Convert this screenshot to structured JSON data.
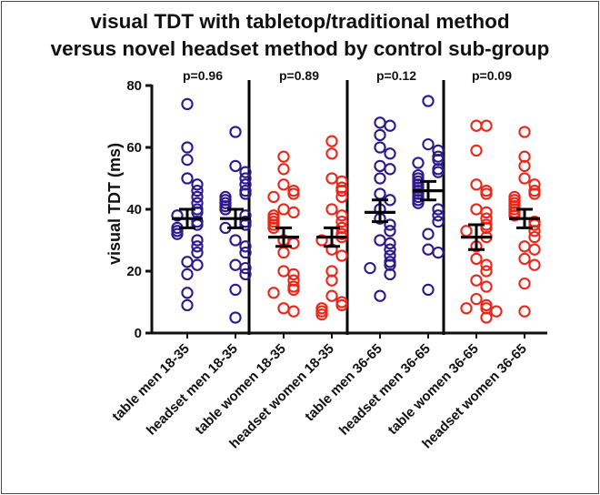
{
  "chart_data": {
    "type": "scatter",
    "title_lines": [
      "visual TDT with tabletop/traditional method",
      "versus novel headset method by control sub-group"
    ],
    "xlabel": "",
    "ylabel": "visual TDT (ms)",
    "ylim": [
      0,
      80
    ],
    "yticks": [
      "0",
      "20",
      "40",
      "60",
      "80"
    ],
    "grid": false,
    "categories": [
      "table men 18-35",
      "headset men 18-35",
      "table women 18-35",
      "headset women 18-35",
      "table men 36-65",
      "headset men 36-65",
      "table women 36-65",
      "headset women 36-65"
    ],
    "colors": [
      "#2e1a8c",
      "#2e1a8c",
      "#e8281a",
      "#e8281a",
      "#2e1a8c",
      "#2e1a8c",
      "#e8281a",
      "#e8281a"
    ],
    "mean_color": "#000000",
    "p_values": [
      "p=0.96",
      "p=0.89",
      "p=0.12",
      "p=0.09"
    ],
    "series": [
      {
        "values": [
          74,
          60,
          56,
          50,
          48,
          46,
          44,
          42,
          40,
          39,
          38,
          36,
          35,
          34,
          33,
          32,
          30,
          28,
          26,
          23,
          22,
          19,
          13,
          9
        ],
        "mean": 37,
        "sem": [
          34,
          40
        ]
      },
      {
        "values": [
          65,
          54,
          52,
          50,
          48,
          46,
          45,
          44,
          43,
          42,
          41,
          40,
          38,
          36,
          35,
          34,
          30,
          28,
          26,
          22,
          21,
          19,
          14,
          5
        ],
        "mean": 37,
        "sem": [
          34,
          40
        ]
      },
      {
        "values": [
          57,
          53,
          48,
          46,
          45,
          44,
          40,
          39,
          38,
          37,
          36,
          35,
          34,
          30,
          29,
          26,
          20,
          19,
          17,
          15,
          14,
          13,
          8,
          7
        ],
        "mean": 31,
        "sem": [
          28,
          34
        ]
      },
      {
        "values": [
          62,
          58,
          50,
          49,
          47,
          46,
          44,
          40,
          38,
          36,
          34,
          32,
          31,
          30,
          27,
          25,
          20,
          17,
          12,
          10,
          9,
          8,
          7,
          6
        ],
        "mean": 31,
        "sem": [
          28,
          34
        ]
      },
      {
        "values": [
          68,
          67,
          64,
          60,
          58,
          54,
          53,
          50,
          45,
          43,
          40,
          37,
          35,
          33,
          30,
          29,
          27,
          25,
          23,
          22,
          21,
          19,
          12
        ],
        "mean": 39,
        "sem": [
          36,
          43
        ]
      },
      {
        "values": [
          75,
          61,
          59,
          57,
          56,
          55,
          53,
          52,
          51,
          50,
          49,
          48,
          47,
          46,
          45,
          44,
          43,
          42,
          40,
          38,
          36,
          32,
          27,
          26,
          14
        ],
        "mean": 46,
        "sem": [
          43,
          49
        ]
      },
      {
        "values": [
          67,
          67,
          59,
          48,
          46,
          45,
          40,
          39,
          37,
          35,
          34,
          33,
          31,
          28,
          24,
          22,
          20,
          17,
          15,
          11,
          9,
          8,
          8,
          7,
          5
        ],
        "mean": 31,
        "sem": [
          27,
          35
        ]
      },
      {
        "values": [
          65,
          57,
          54,
          50,
          48,
          46,
          45,
          44,
          43,
          42,
          41,
          40,
          39,
          38,
          36,
          35,
          33,
          31,
          28,
          27,
          24,
          22,
          16,
          7
        ],
        "mean": 37,
        "sem": [
          34,
          40
        ]
      }
    ]
  }
}
